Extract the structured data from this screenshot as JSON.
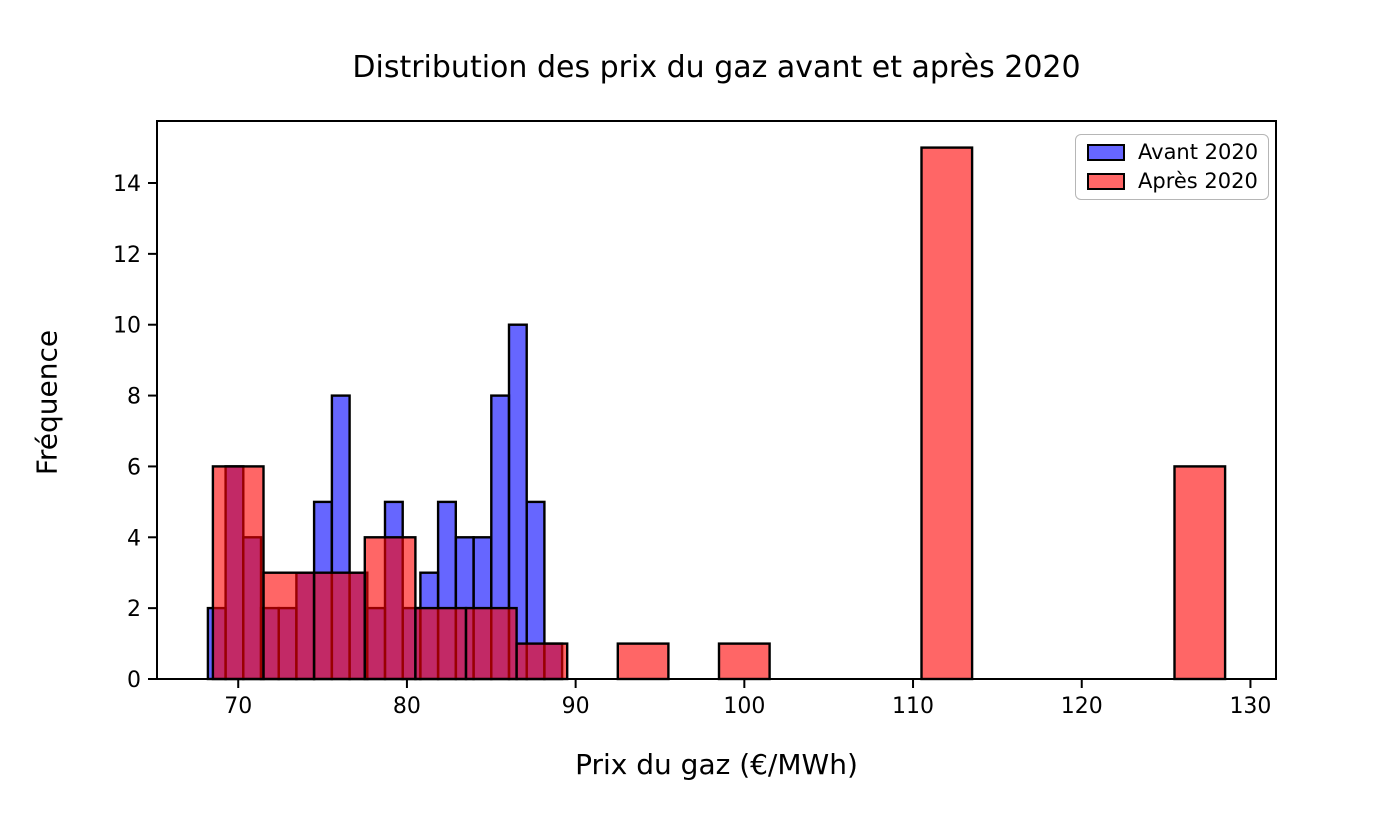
{
  "title": "Distribution des prix du gaz avant et après 2020",
  "axes": {
    "xlabel": "Prix du gaz (€/MWh)",
    "ylabel": "Fréquence",
    "x_ticks": [
      70,
      80,
      90,
      100,
      110,
      120,
      130
    ],
    "y_ticks": [
      0,
      2,
      4,
      6,
      8,
      10,
      12,
      14
    ],
    "xlim": [
      65.185,
      131.515
    ],
    "ylim": [
      0,
      15.75
    ],
    "grid": false,
    "frame": "full-box"
  },
  "legend": {
    "position": "upper-right",
    "entries": [
      {
        "label": "Avant 2020",
        "swatch_color": "#6666FF"
      },
      {
        "label": "Après 2020",
        "swatch_color": "#FF6666"
      }
    ]
  },
  "colors": {
    "avant_fill_base": "#0000FF",
    "apres_fill_base": "#FF0000",
    "fill_alpha": 0.6,
    "bar_edge": "#000000",
    "overlap_rendered": "#C22966",
    "avant_rendered": "#6666FF",
    "apres_rendered": "#FF6666",
    "axis_color": "#000000"
  },
  "chart_data": {
    "type": "bar",
    "variant": "overlaid-histogram",
    "title": "Distribution des prix du gaz avant et après 2020",
    "xlabel": "Prix du gaz (€/MWh)",
    "ylabel": "Fréquence",
    "xlim": [
      65.185,
      131.515
    ],
    "ylim": [
      0,
      15.75
    ],
    "legend_position": "upper right",
    "series": [
      {
        "name": "Avant 2020",
        "bin_start": 68.2,
        "bin_width": 1.05,
        "bin_edges": [
          68.2,
          69.25,
          70.3,
          71.35,
          72.4,
          73.45,
          74.5,
          75.55,
          76.6,
          77.65,
          78.7,
          79.75,
          80.8,
          81.85,
          82.9,
          83.95,
          85.0,
          86.05,
          87.1,
          88.15,
          89.2
        ],
        "counts": [
          2,
          6,
          4,
          2,
          2,
          3,
          5,
          8,
          3,
          2,
          5,
          2,
          3,
          5,
          4,
          4,
          8,
          10,
          5,
          1
        ],
        "fill": "#0000FF",
        "fill_alpha": 0.6,
        "edge": "#000000"
      },
      {
        "name": "Après 2020",
        "bin_start": 68.5,
        "bin_width": 3.0,
        "bin_edges": [
          68.5,
          71.5,
          74.5,
          77.5,
          80.5,
          83.5,
          86.5,
          89.5,
          92.5,
          95.5,
          98.5,
          101.5,
          104.5,
          107.5,
          110.5,
          113.5,
          116.5,
          119.5,
          122.5,
          125.5,
          128.5
        ],
        "counts": [
          6,
          3,
          3,
          4,
          2,
          2,
          1,
          0,
          1,
          0,
          1,
          0,
          0,
          0,
          15,
          0,
          0,
          0,
          0,
          6
        ],
        "fill": "#FF0000",
        "fill_alpha": 0.6,
        "edge": "#000000"
      }
    ]
  }
}
